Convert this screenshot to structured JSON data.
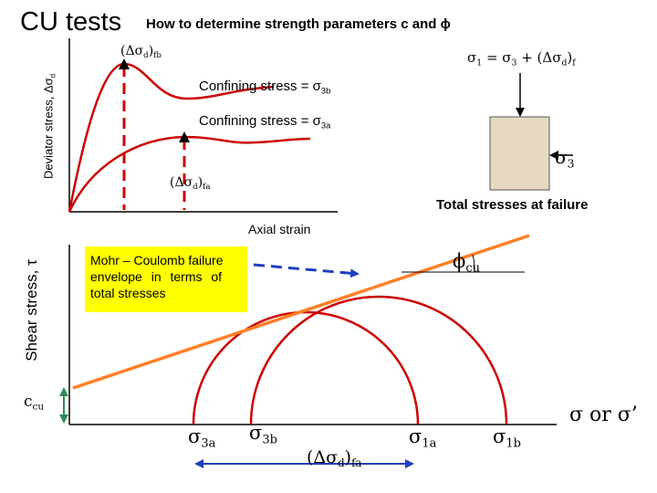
{
  "slide": {
    "title": "CU tests",
    "subtitle": "How to determine strength parameters c and ϕ"
  },
  "top_plot": {
    "y_axis_label": "Deviator stress, Δσd",
    "x_axis_label": "Axial strain",
    "peak_b_label": "(Δσd)fb",
    "peak_a_label": "(Δσd)fa",
    "curve_b_label": "Confining stress = σ3b",
    "curve_a_label": "Confining stress = σ3a"
  },
  "specimen": {
    "equation": "σ1 = σ3 + (Δσd)f",
    "sigma3_label": "σ3",
    "caption": "Total stresses at failure",
    "fill_color": "#e6d9bf"
  },
  "mohr_plot": {
    "y_axis_label": "Shear stress, τ",
    "x_axis_label": "σ or σ’",
    "intercept_label": "ccu",
    "angle_label": "ϕcu",
    "callout_text": [
      "Mohr – Coulomb failure",
      "envelope in terms of",
      "total stresses"
    ],
    "callout_color": "#ffff00",
    "envelope_color": "#ff7f27",
    "circle_color": "#cc0000",
    "arrow_color": "#1f3fbf",
    "tick_labels": {
      "sigma3a": "σ3a",
      "sigma3b": "σ3b",
      "sigma1a": "σ1a",
      "sigma1b": "σ1b",
      "diameter": "(Δσd)fa"
    }
  }
}
